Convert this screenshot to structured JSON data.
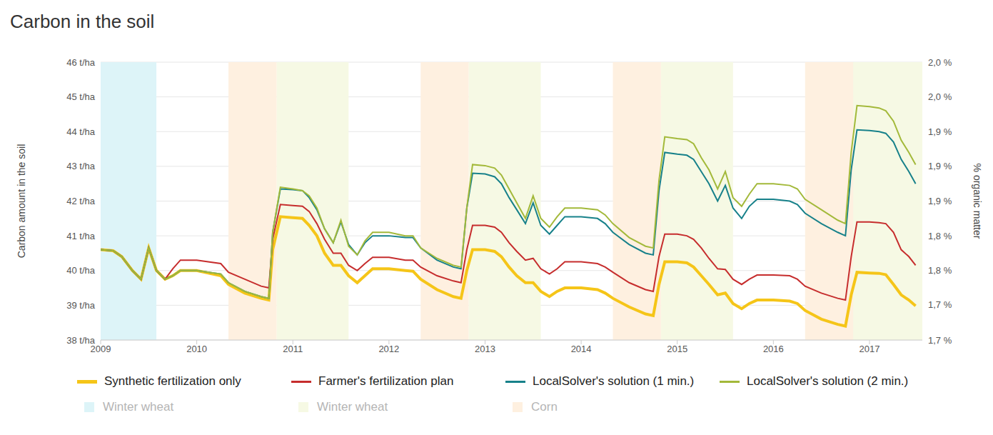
{
  "chart_data": {
    "type": "line",
    "title": "Carbon in the soil",
    "y_label": "Carbon amount in the soil",
    "y2_label": "% organic matter",
    "grid": true,
    "x": [
      2009.0,
      2009.13,
      2009.22,
      2009.33,
      2009.42,
      2009.5,
      2009.58,
      2009.67,
      2009.75,
      2009.83,
      2010.0,
      2010.25,
      2010.33,
      2010.5,
      2010.67,
      2010.75,
      2010.79,
      2010.87,
      2011.0,
      2011.1,
      2011.17,
      2011.25,
      2011.33,
      2011.42,
      2011.5,
      2011.58,
      2011.67,
      2011.75,
      2011.83,
      2012.0,
      2012.17,
      2012.25,
      2012.33,
      2012.5,
      2012.67,
      2012.75,
      2012.81,
      2012.87,
      2013.0,
      2013.1,
      2013.17,
      2013.25,
      2013.33,
      2013.42,
      2013.5,
      2013.58,
      2013.67,
      2013.75,
      2013.83,
      2014.0,
      2014.17,
      2014.25,
      2014.33,
      2014.5,
      2014.67,
      2014.75,
      2014.81,
      2014.87,
      2015.0,
      2015.1,
      2015.17,
      2015.25,
      2015.33,
      2015.42,
      2015.5,
      2015.58,
      2015.67,
      2015.75,
      2015.83,
      2016.0,
      2016.17,
      2016.25,
      2016.33,
      2016.5,
      2016.67,
      2016.75,
      2016.81,
      2016.87,
      2017.0,
      2017.1,
      2017.17,
      2017.25,
      2017.33,
      2017.41,
      2017.48
    ],
    "xlim": [
      2009,
      2017.55
    ],
    "xticks": [
      2009,
      2010,
      2011,
      2012,
      2013,
      2014,
      2015,
      2016,
      2017
    ],
    "ylim": [
      38,
      46
    ],
    "yticks": [
      {
        "value": 38,
        "label": "38 t/ha"
      },
      {
        "value": 39,
        "label": "39 t/ha"
      },
      {
        "value": 40,
        "label": "40 t/ha"
      },
      {
        "value": 41,
        "label": "41 t/ha"
      },
      {
        "value": 42,
        "label": "42 t/ha"
      },
      {
        "value": 43,
        "label": "43 t/ha"
      },
      {
        "value": 44,
        "label": "44 t/ha"
      },
      {
        "value": 45,
        "label": "45 t/ha"
      },
      {
        "value": 46,
        "label": "46 t/ha"
      }
    ],
    "y2lim": [
      1.683,
      2.038
    ],
    "y2ticks": [
      {
        "value": 1.683,
        "label": "1,7 %"
      },
      {
        "value": 1.728,
        "label": "1,7 %"
      },
      {
        "value": 1.772,
        "label": "1,8 %"
      },
      {
        "value": 1.816,
        "label": "1,8 %"
      },
      {
        "value": 1.861,
        "label": "1,9 %"
      },
      {
        "value": 1.905,
        "label": "1,9 %"
      },
      {
        "value": 1.949,
        "label": "1,9 %"
      },
      {
        "value": 1.994,
        "label": "2,0 %"
      },
      {
        "value": 2.038,
        "label": "2,0 %"
      }
    ],
    "series": [
      {
        "name": "Synthetic fertilization only",
        "color": "#f5c518",
        "values": [
          40.6,
          40.57,
          40.4,
          40.0,
          39.75,
          40.65,
          40.0,
          39.75,
          39.85,
          40.0,
          40.0,
          39.85,
          39.6,
          39.35,
          39.2,
          39.15,
          40.6,
          41.55,
          41.52,
          41.5,
          41.3,
          41.0,
          40.5,
          40.15,
          40.15,
          39.85,
          39.65,
          39.85,
          40.05,
          40.05,
          40.0,
          39.98,
          39.75,
          39.45,
          39.25,
          39.2,
          40.0,
          40.6,
          40.6,
          40.55,
          40.4,
          40.1,
          39.85,
          39.65,
          39.65,
          39.4,
          39.25,
          39.4,
          39.5,
          39.5,
          39.45,
          39.35,
          39.2,
          38.95,
          38.75,
          38.7,
          39.6,
          40.25,
          40.25,
          40.22,
          40.1,
          39.85,
          39.6,
          39.3,
          39.35,
          39.05,
          38.9,
          39.05,
          39.15,
          39.15,
          39.12,
          39.05,
          38.85,
          38.6,
          38.45,
          38.4,
          39.3,
          39.95,
          39.93,
          39.92,
          39.88,
          39.6,
          39.3,
          39.15,
          38.98
        ]
      },
      {
        "name": "Farmer's fertilization plan",
        "color": "#c62d2d",
        "values": [
          40.6,
          40.57,
          40.4,
          40.0,
          39.75,
          40.65,
          40.0,
          39.75,
          40.05,
          40.3,
          40.3,
          40.2,
          39.95,
          39.75,
          39.55,
          39.5,
          40.9,
          41.9,
          41.87,
          41.85,
          41.7,
          41.35,
          40.9,
          40.5,
          40.5,
          40.15,
          40.0,
          40.2,
          40.38,
          40.38,
          40.3,
          40.3,
          40.1,
          39.85,
          39.7,
          39.65,
          40.6,
          41.3,
          41.3,
          41.25,
          41.1,
          40.8,
          40.55,
          40.3,
          40.35,
          40.05,
          39.9,
          40.05,
          40.25,
          40.25,
          40.2,
          40.1,
          39.95,
          39.65,
          39.45,
          39.4,
          40.4,
          41.05,
          41.05,
          41.0,
          40.9,
          40.65,
          40.35,
          40.05,
          40.03,
          39.75,
          39.6,
          39.75,
          39.87,
          39.87,
          39.85,
          39.75,
          39.55,
          39.35,
          39.2,
          39.15,
          40.4,
          41.4,
          41.4,
          41.38,
          41.35,
          41.1,
          40.6,
          40.4,
          40.15
        ]
      },
      {
        "name": "LocalSolver's solution (1 min.)",
        "color": "#17818a",
        "values": [
          40.6,
          40.57,
          40.4,
          40.0,
          39.75,
          40.65,
          40.0,
          39.75,
          39.85,
          40.0,
          40.0,
          39.9,
          39.65,
          39.4,
          39.25,
          39.2,
          41.1,
          42.35,
          42.33,
          42.3,
          42.1,
          41.75,
          41.2,
          40.8,
          41.4,
          40.75,
          40.45,
          40.8,
          41.0,
          41.0,
          40.95,
          40.95,
          40.65,
          40.3,
          40.1,
          40.05,
          41.8,
          42.8,
          42.78,
          42.7,
          42.5,
          42.1,
          41.75,
          41.35,
          41.95,
          41.3,
          41.05,
          41.3,
          41.55,
          41.55,
          41.5,
          41.35,
          41.1,
          40.75,
          40.5,
          40.45,
          42.3,
          43.4,
          43.35,
          43.32,
          43.2,
          42.85,
          42.5,
          42.0,
          42.45,
          41.8,
          41.5,
          41.85,
          42.05,
          42.05,
          42.0,
          41.9,
          41.65,
          41.35,
          41.1,
          41.0,
          42.9,
          44.05,
          44.03,
          44.0,
          43.95,
          43.7,
          43.2,
          42.85,
          42.5
        ]
      },
      {
        "name": "LocalSolver's solution (2 min.)",
        "color": "#a3b93a",
        "values": [
          40.6,
          40.57,
          40.4,
          40.0,
          39.75,
          40.65,
          40.0,
          39.75,
          39.85,
          40.0,
          40.0,
          39.9,
          39.65,
          39.4,
          39.25,
          39.2,
          41.1,
          42.4,
          42.35,
          42.3,
          42.15,
          41.8,
          41.2,
          40.8,
          41.45,
          40.7,
          40.45,
          40.85,
          41.1,
          41.1,
          41.0,
          41.0,
          40.65,
          40.35,
          40.15,
          40.1,
          41.8,
          43.05,
          43.02,
          42.95,
          42.75,
          42.35,
          41.95,
          41.5,
          42.15,
          41.5,
          41.25,
          41.55,
          41.8,
          41.8,
          41.75,
          41.6,
          41.35,
          40.95,
          40.7,
          40.65,
          42.6,
          43.85,
          43.8,
          43.77,
          43.65,
          43.25,
          42.9,
          42.35,
          42.85,
          42.1,
          41.85,
          42.2,
          42.5,
          42.5,
          42.45,
          42.35,
          42.05,
          41.75,
          41.45,
          41.35,
          43.4,
          44.75,
          44.72,
          44.68,
          44.6,
          44.3,
          43.75,
          43.4,
          43.05
        ]
      }
    ],
    "crops": [
      {
        "name": "Winter wheat",
        "color": "#ddf4f8",
        "periods": [
          [
            2009.0,
            2009.58
          ]
        ]
      },
      {
        "name": "Winter wheat",
        "color": "#f6f9e4",
        "periods": [
          [
            2010.83,
            2011.58
          ],
          [
            2012.83,
            2013.58
          ],
          [
            2014.83,
            2015.58
          ],
          [
            2016.83,
            2017.55
          ]
        ]
      },
      {
        "name": "Corn",
        "color": "#fef0e0",
        "periods": [
          [
            2010.33,
            2010.83
          ],
          [
            2012.33,
            2012.83
          ],
          [
            2014.33,
            2014.83
          ],
          [
            2016.33,
            2016.83
          ]
        ]
      }
    ]
  }
}
